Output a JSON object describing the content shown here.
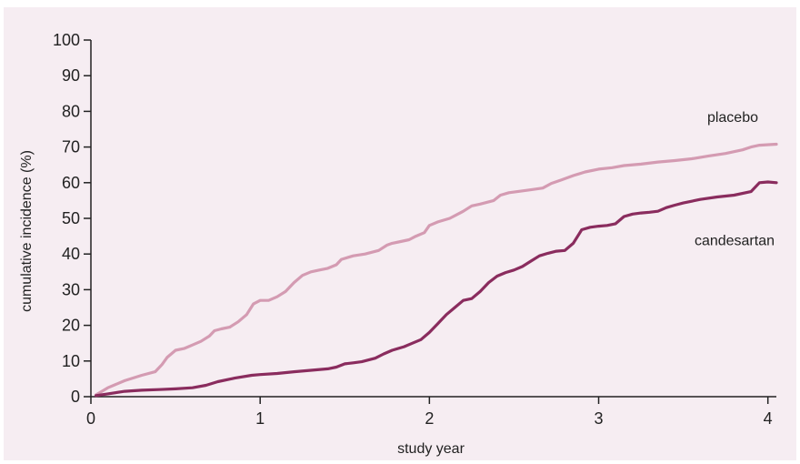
{
  "chart_data": {
    "type": "line",
    "xlabel": "study year",
    "ylabel": "cumulative incidence (%)",
    "xlim": [
      0,
      4.05
    ],
    "ylim": [
      0,
      100
    ],
    "x_ticks": [
      0,
      1,
      2,
      3,
      4
    ],
    "y_ticks": [
      0,
      10,
      20,
      30,
      40,
      50,
      60,
      70,
      80,
      90,
      100
    ],
    "grid": false,
    "legend": "direct labels",
    "series": [
      {
        "name": "placebo",
        "color": "#d49bb2",
        "x": [
          0.03,
          0.1,
          0.2,
          0.3,
          0.38,
          0.42,
          0.45,
          0.5,
          0.55,
          0.6,
          0.65,
          0.7,
          0.73,
          0.77,
          0.82,
          0.87,
          0.92,
          0.96,
          1.0,
          1.05,
          1.1,
          1.15,
          1.2,
          1.25,
          1.3,
          1.35,
          1.4,
          1.45,
          1.48,
          1.55,
          1.62,
          1.7,
          1.75,
          1.78,
          1.83,
          1.88,
          1.92,
          1.97,
          2.0,
          2.05,
          2.12,
          2.2,
          2.25,
          2.3,
          2.38,
          2.42,
          2.47,
          2.52,
          2.6,
          2.67,
          2.72,
          2.78,
          2.85,
          2.92,
          3.0,
          3.08,
          3.15,
          3.25,
          3.35,
          3.45,
          3.55,
          3.65,
          3.75,
          3.85,
          3.9,
          3.95,
          4.05
        ],
        "y": [
          0.5,
          2.5,
          4.5,
          6,
          7,
          9,
          11,
          13,
          13.5,
          14.5,
          15.5,
          17,
          18.5,
          19,
          19.5,
          21,
          23,
          26,
          27,
          27,
          28,
          29.5,
          32,
          34,
          35,
          35.5,
          36,
          37,
          38.5,
          39.5,
          40,
          41,
          42.5,
          43,
          43.5,
          44,
          45,
          46,
          48,
          49,
          50,
          52,
          53.5,
          54,
          55,
          56.5,
          57.2,
          57.5,
          58,
          58.5,
          59.8,
          60.8,
          62,
          63,
          63.8,
          64.2,
          64.8,
          65.2,
          65.8,
          66.2,
          66.7,
          67.5,
          68.2,
          69.2,
          70,
          70.5,
          70.8
        ]
      },
      {
        "name": "candesartan",
        "color": "#8a2c5e",
        "x": [
          0.03,
          0.1,
          0.2,
          0.3,
          0.4,
          0.5,
          0.6,
          0.68,
          0.75,
          0.85,
          0.95,
          1.0,
          1.1,
          1.2,
          1.3,
          1.4,
          1.45,
          1.5,
          1.55,
          1.6,
          1.68,
          1.73,
          1.78,
          1.85,
          1.9,
          1.95,
          2.0,
          2.05,
          2.1,
          2.15,
          2.2,
          2.25,
          2.3,
          2.35,
          2.4,
          2.45,
          2.5,
          2.55,
          2.6,
          2.65,
          2.7,
          2.75,
          2.8,
          2.85,
          2.9,
          2.95,
          3.0,
          3.05,
          3.1,
          3.15,
          3.2,
          3.25,
          3.3,
          3.35,
          3.4,
          3.45,
          3.5,
          3.6,
          3.7,
          3.8,
          3.9,
          3.95,
          4.0,
          4.05
        ],
        "y": [
          0.3,
          0.8,
          1.5,
          1.8,
          2,
          2.2,
          2.5,
          3.2,
          4.2,
          5.2,
          6,
          6.2,
          6.5,
          7,
          7.4,
          7.8,
          8.3,
          9.2,
          9.5,
          9.8,
          10.8,
          12,
          13,
          14,
          15,
          16,
          18,
          20.5,
          23,
          25,
          27,
          27.5,
          29.5,
          32,
          33.8,
          34.8,
          35.5,
          36.5,
          38,
          39.5,
          40.2,
          40.8,
          41,
          43,
          46.8,
          47.5,
          47.8,
          48,
          48.5,
          50.5,
          51.2,
          51.5,
          51.7,
          52,
          53,
          53.7,
          54.3,
          55.3,
          56,
          56.5,
          57.5,
          60,
          60.2,
          60
        ]
      }
    ]
  }
}
